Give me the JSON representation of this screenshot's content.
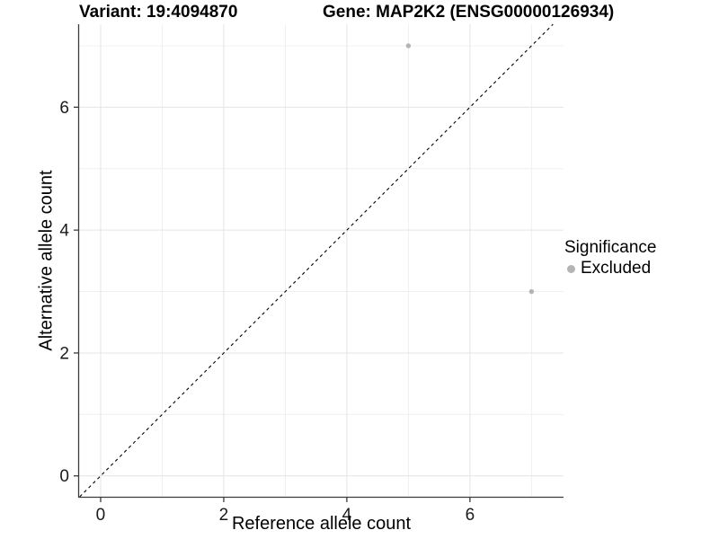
{
  "chart_data": {
    "type": "scatter",
    "title_left": "Variant: 19:4094870",
    "title_right": "Gene: MAP2K2 (ENSG00000126934)",
    "xlabel": "Reference allele count",
    "ylabel": "Alternative allele count",
    "xlim": [
      -0.35,
      7.52
    ],
    "ylim": [
      -0.34,
      7.35
    ],
    "x_major_ticks": [
      0,
      2,
      4,
      6
    ],
    "y_major_ticks": [
      0,
      2,
      4,
      6
    ],
    "x_minor_ticks": [
      1,
      3,
      5,
      7
    ],
    "y_minor_ticks": [
      1,
      3,
      5,
      7
    ],
    "grid": true,
    "legend": {
      "title": "Significance",
      "position": "right",
      "items": [
        {
          "label": "Excluded",
          "color": "#b4b4b4"
        }
      ]
    },
    "series": [
      {
        "name": "Excluded",
        "color": "#b4b4b4",
        "marker": "circle",
        "points": [
          {
            "x": 5,
            "y": 7
          },
          {
            "x": 7,
            "y": 3
          }
        ]
      }
    ],
    "reference_line": {
      "type": "identity",
      "slope": 1,
      "intercept": 0,
      "style": "dashed",
      "color": "#000000"
    }
  },
  "colors": {
    "background": "#ffffff",
    "grid_major": "#e4e4e4",
    "grid_minor": "#f0f0f0",
    "axis_line": "#3c3c3c",
    "tick_mark": "#3c3c3c",
    "tick_label": "#1a1a1a",
    "point": "#b4b4b4"
  }
}
